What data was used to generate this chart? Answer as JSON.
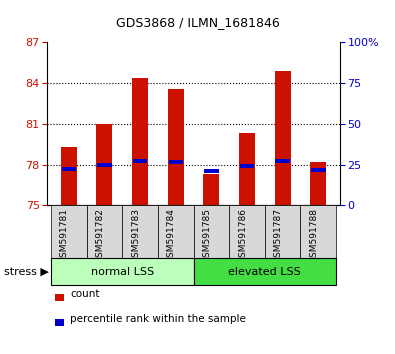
{
  "title": "GDS3868 / ILMN_1681846",
  "samples": [
    "GSM591781",
    "GSM591782",
    "GSM591783",
    "GSM591784",
    "GSM591785",
    "GSM591786",
    "GSM591787",
    "GSM591788"
  ],
  "count_values": [
    79.3,
    81.0,
    84.4,
    83.6,
    77.3,
    80.3,
    84.9,
    78.2
  ],
  "percentile_values": [
    77.7,
    78.0,
    78.3,
    78.2,
    77.5,
    77.9,
    78.3,
    77.6
  ],
  "ylim_left": [
    75,
    87
  ],
  "ylim_right": [
    0,
    100
  ],
  "yticks_left": [
    75,
    78,
    81,
    84,
    87
  ],
  "yticks_right": [
    0,
    25,
    50,
    75,
    100
  ],
  "bar_color": "#cc1100",
  "percentile_color": "#0000cc",
  "bar_width": 0.45,
  "group_normal_color": "#bbffbb",
  "group_elevated_color": "#44dd44",
  "stress_label": "stress",
  "background_color": "#ffffff",
  "tick_label_color_left": "#cc1100",
  "tick_label_color_right": "#0000cc",
  "legend_count": "count",
  "legend_percentile": "percentile rank within the sample",
  "gridlines": [
    78,
    81,
    84
  ]
}
